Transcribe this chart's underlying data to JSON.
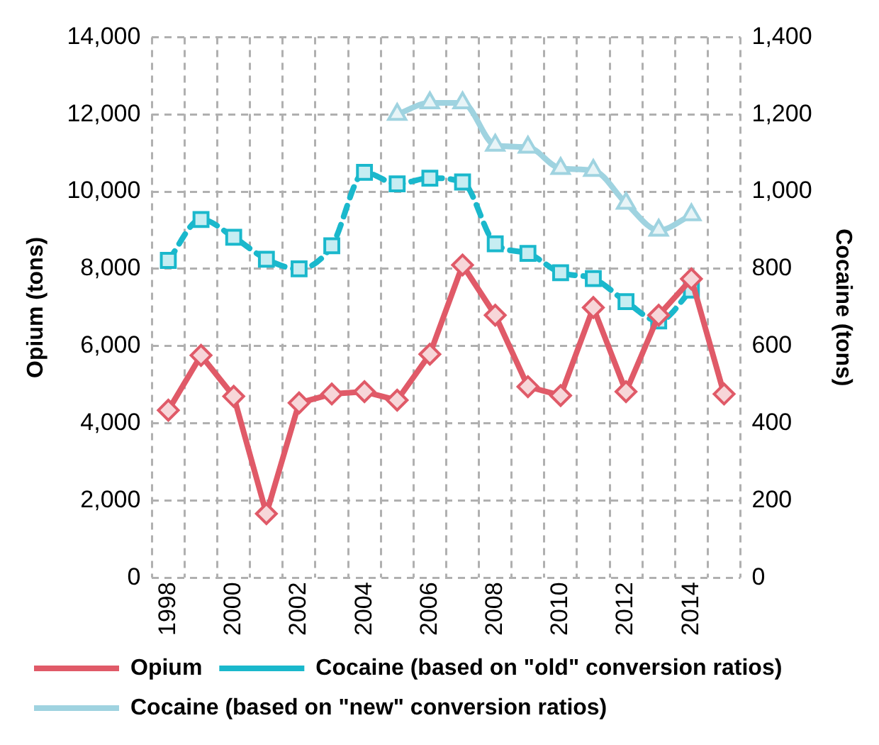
{
  "chart_data": {
    "type": "line",
    "categories": [
      "1998",
      null,
      "2000",
      null,
      "2002",
      null,
      "2004",
      null,
      "2006",
      null,
      "2008",
      null,
      "2010",
      null,
      "2012",
      null,
      "2014",
      null
    ],
    "ylabel": "Opium (tons)",
    "y2label": "Cocaine (tons)",
    "ylim": [
      0,
      14000
    ],
    "yticks": [
      {
        "value": 0,
        "label": "0"
      },
      {
        "value": 2000,
        "label": "2,000"
      },
      {
        "value": 4000,
        "label": "4,000"
      },
      {
        "value": 6000,
        "label": "6,000"
      },
      {
        "value": 8000,
        "label": "8,000"
      },
      {
        "value": 10000,
        "label": "10,000"
      },
      {
        "value": 12000,
        "label": "12,000"
      },
      {
        "value": 14000,
        "label": "14,000"
      }
    ],
    "y2lim": [
      0,
      1400
    ],
    "y2ticks": [
      {
        "value": 0,
        "label": "0"
      },
      {
        "value": 200,
        "label": "200"
      },
      {
        "value": 400,
        "label": "400"
      },
      {
        "value": 600,
        "label": "600"
      },
      {
        "value": 800,
        "label": "800"
      },
      {
        "value": 1000,
        "label": "1,000"
      },
      {
        "value": 1200,
        "label": "1,200"
      },
      {
        "value": 1400,
        "label": "1,400"
      }
    ],
    "grid": true,
    "legend": "bottom",
    "series": [
      {
        "name": "Opium",
        "color": "#e05a68",
        "marker": "diamond",
        "line_style": "solid",
        "values": [
          4340,
          5760,
          4700,
          1660,
          4530,
          4760,
          4820,
          4600,
          5790,
          8100,
          6800,
          4950,
          4720,
          7000,
          4820,
          6800,
          7740,
          4760
        ]
      },
      {
        "name": "Cocaine (based on \"old\" conversion ratios)",
        "color": "#1ab8cc",
        "axis": "y2",
        "marker": "square",
        "line_style": "dashed",
        "values": [
          822,
          928,
          882,
          825,
          800,
          860,
          1050,
          1020,
          1035,
          1025,
          865,
          840,
          790,
          775,
          715,
          665,
          745,
          null
        ]
      },
      {
        "name": "Cocaine (based on \"new\" conversion ratios)",
        "color": "#9fd3e0",
        "axis": "y2",
        "marker": "triangle",
        "line_style": "solid",
        "values": [
          null,
          null,
          null,
          null,
          null,
          null,
          null,
          1200,
          1230,
          1230,
          1120,
          1115,
          1060,
          1055,
          970,
          900,
          940,
          null
        ]
      }
    ]
  }
}
